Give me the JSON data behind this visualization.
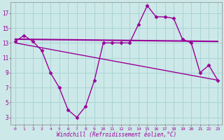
{
  "line1_x": [
    0,
    1,
    2,
    3,
    4,
    5,
    6,
    7,
    8,
    9,
    10,
    11,
    12,
    13,
    14,
    15,
    16,
    17,
    18,
    19,
    20,
    21,
    22,
    23
  ],
  "line1_y": [
    13.2,
    14.0,
    13.2,
    12.0,
    9.0,
    7.0,
    4.0,
    3.0,
    4.5,
    8.0,
    13.0,
    13.0,
    13.0,
    13.0,
    15.5,
    18.0,
    16.5,
    16.5,
    16.3,
    13.5,
    13.0,
    9.0,
    10.0,
    8.0
  ],
  "line2_x": [
    0,
    23
  ],
  "line2_y": [
    13.5,
    13.2
  ],
  "line3_x": [
    0,
    23
  ],
  "line3_y": [
    13.0,
    8.0
  ],
  "color": "#990099",
  "bg_color": "#cce8e8",
  "grid_color": "#aad4d4",
  "xlabel": "Windchill (Refroidissement éolien,°C)",
  "xlim": [
    -0.5,
    23.5
  ],
  "ylim": [
    2,
    18.5
  ],
  "yticks": [
    3,
    5,
    7,
    9,
    11,
    13,
    15,
    17
  ],
  "xticks": [
    0,
    1,
    2,
    3,
    4,
    5,
    6,
    7,
    8,
    9,
    10,
    11,
    12,
    13,
    14,
    15,
    16,
    17,
    18,
    19,
    20,
    21,
    22,
    23
  ],
  "marker": "D",
  "markersize": 2.5,
  "linewidth1": 1.0,
  "linewidth2": 1.5,
  "linewidth3": 1.0
}
